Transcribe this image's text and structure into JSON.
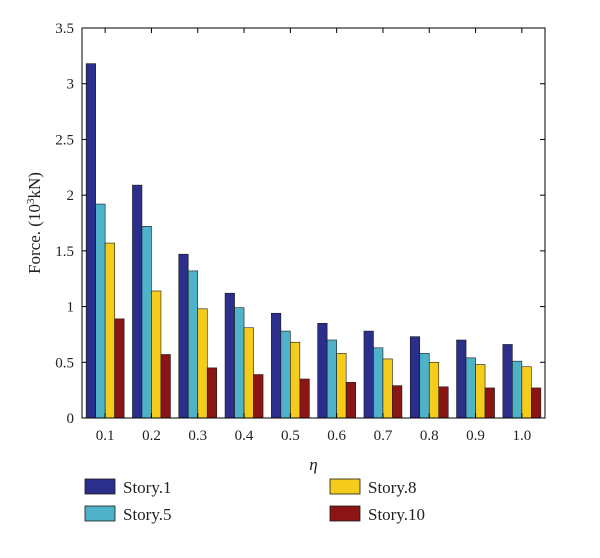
{
  "chart_data": {
    "type": "bar",
    "title": "",
    "xlabel": "η",
    "ylabel_main": "Force. (10",
    "ylabel_sup": "3",
    "ylabel_unit": "kN)",
    "ylim": [
      0,
      3.5
    ],
    "yticks": [
      "0",
      "0.5",
      "1",
      "1.5",
      "2",
      "2.5",
      "3",
      "3.5"
    ],
    "categories": [
      "0.1",
      "0.2",
      "0.3",
      "0.4",
      "0.5",
      "0.6",
      "0.7",
      "0.8",
      "0.9",
      "1.0"
    ],
    "legend_placement": "bottom",
    "grid": false,
    "series": [
      {
        "name": "Story.1",
        "color": "#2b2e8a",
        "values": [
          3.18,
          2.09,
          1.47,
          1.12,
          0.94,
          0.85,
          0.78,
          0.73,
          0.7,
          0.66
        ]
      },
      {
        "name": "Story.5",
        "color": "#4eb3c8",
        "values": [
          1.92,
          1.72,
          1.32,
          0.99,
          0.78,
          0.7,
          0.63,
          0.58,
          0.54,
          0.51
        ]
      },
      {
        "name": "Story.8",
        "color": "#f5cc1c",
        "values": [
          1.57,
          1.14,
          0.98,
          0.81,
          0.68,
          0.58,
          0.53,
          0.5,
          0.48,
          0.46
        ]
      },
      {
        "name": "Story.10",
        "color": "#8b1414",
        "values": [
          0.89,
          0.57,
          0.45,
          0.39,
          0.35,
          0.32,
          0.29,
          0.28,
          0.27,
          0.27
        ]
      }
    ]
  }
}
